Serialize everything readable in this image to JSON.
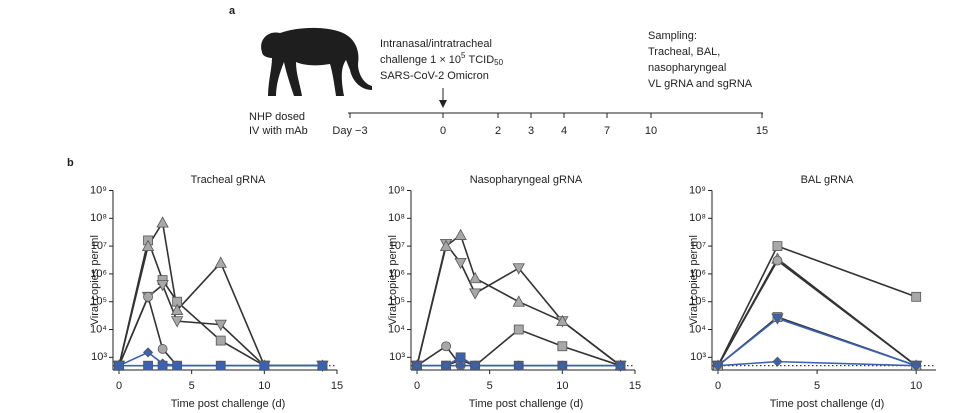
{
  "panel_a": {
    "label": "a",
    "challenge": {
      "line1": "Intranasal/intratracheal",
      "line2_text": "challenge 1 × 10",
      "line2_exp": "5",
      "line2_unit": "TCID",
      "line2_sub": "50",
      "line3": "SARS-CoV-2 Omicron"
    },
    "sampling": [
      "Sampling:",
      "Tracheal, BAL,",
      "nasopharyngeal",
      "VL gRNA and sgRNA"
    ],
    "dosing": [
      "NHP dosed",
      "IV with mAb"
    ],
    "timeline_ticks": [
      "Day −3",
      "0",
      "2",
      "3",
      "4",
      "7",
      "10",
      "15"
    ]
  },
  "panel_b_label": "b",
  "chart_data": [
    {
      "type": "line",
      "title": "Tracheal gRNA",
      "xlabel": "Time post challenge (d)",
      "ylabel": "Viral copies per ml",
      "x": [
        0,
        2,
        3,
        4,
        7,
        10,
        14
      ],
      "xlim": [
        0,
        15
      ],
      "xticks": [
        0,
        5,
        10,
        15
      ],
      "ylim": [
        350,
        1000000000
      ],
      "log_y": true,
      "threshold": 500,
      "yticks": [
        {
          "value": 1000,
          "label": "10³"
        },
        {
          "value": 10000,
          "label": "10⁴"
        },
        {
          "value": 100000,
          "label": "10⁵"
        },
        {
          "value": 1000000,
          "label": "10⁶"
        },
        {
          "value": 10000000,
          "label": "10⁷"
        },
        {
          "value": 100000000,
          "label": "10⁸"
        },
        {
          "value": 1000000000,
          "label": "10⁹"
        }
      ],
      "series": [
        {
          "color": "#a8a8a8",
          "line_color": "#333333",
          "marker": "square",
          "values": [
            500,
            16000000,
            600000,
            100000,
            4000,
            500,
            500
          ]
        },
        {
          "color": "#a8a8a8",
          "line_color": "#333333",
          "marker": "triangle",
          "values": [
            500,
            10000000,
            70000000,
            50000,
            2500000,
            500,
            500
          ]
        },
        {
          "color": "#a8a8a8",
          "line_color": "#333333",
          "marker": "triangle-down",
          "values": [
            500,
            150000,
            400000,
            20000,
            15000,
            500,
            500
          ]
        },
        {
          "color": "#a8a8a8",
          "line_color": "#333333",
          "marker": "circle",
          "values": [
            500,
            150000,
            2000,
            500,
            500,
            500,
            500
          ]
        },
        {
          "color": "#3a62b4",
          "line_color": "#3a62b4",
          "marker": "diamond",
          "values": [
            500,
            1500,
            600,
            500,
            500,
            500,
            500
          ]
        },
        {
          "color": "#3a62b4",
          "line_color": "#3a62b4",
          "marker": "square",
          "values": [
            500,
            500,
            500,
            500,
            500,
            500,
            500
          ]
        }
      ]
    },
    {
      "type": "line",
      "title": "Nasopharyngeal gRNA",
      "xlabel": "Time post challenge (d)",
      "ylabel": "Viral copies per ml",
      "x": [
        0,
        2,
        3,
        4,
        7,
        10,
        14
      ],
      "xlim": [
        0,
        15
      ],
      "xticks": [
        0,
        5,
        10,
        15
      ],
      "ylim": [
        350,
        1000000000
      ],
      "log_y": true,
      "threshold": 500,
      "yticks": [
        {
          "value": 1000,
          "label": "10³"
        },
        {
          "value": 10000,
          "label": "10⁴"
        },
        {
          "value": 100000,
          "label": "10⁵"
        },
        {
          "value": 1000000,
          "label": "10⁶"
        },
        {
          "value": 10000000,
          "label": "10⁷"
        },
        {
          "value": 100000000,
          "label": "10⁸"
        },
        {
          "value": 1000000000,
          "label": "10⁹"
        }
      ],
      "series": [
        {
          "color": "#a8a8a8",
          "line_color": "#333333",
          "marker": "triangle-down",
          "values": [
            500,
            12000000,
            2500000,
            200000,
            1600000,
            20000,
            500
          ]
        },
        {
          "color": "#a8a8a8",
          "line_color": "#333333",
          "marker": "triangle",
          "values": [
            500,
            10000000,
            25000000,
            700000,
            100000,
            20000,
            500
          ]
        },
        {
          "color": "#a8a8a8",
          "line_color": "#333333",
          "marker": "square",
          "values": [
            500,
            500,
            800,
            500,
            10000,
            2500,
            500
          ]
        },
        {
          "color": "#a8a8a8",
          "line_color": "#333333",
          "marker": "circle",
          "values": [
            500,
            2500,
            500,
            500,
            500,
            500,
            500
          ]
        },
        {
          "color": "#3a62b4",
          "line_color": "#3a62b4",
          "marker": "square",
          "values": [
            500,
            500,
            1000,
            500,
            500,
            500,
            500
          ]
        },
        {
          "color": "#3a62b4",
          "line_color": "#3a62b4",
          "marker": "diamond",
          "values": [
            500,
            500,
            500,
            500,
            500,
            500,
            500
          ]
        }
      ]
    },
    {
      "type": "line",
      "title": "BAL gRNA",
      "xlabel": "Time post challenge (d)",
      "ylabel": "Viral copies per ml",
      "x": [
        0,
        3,
        10
      ],
      "xlim": [
        0,
        11
      ],
      "xticks": [
        0,
        5,
        10
      ],
      "ylim": [
        350,
        1000000000
      ],
      "log_y": true,
      "threshold": 500,
      "yticks": [
        {
          "value": 1000,
          "label": "10³"
        },
        {
          "value": 10000,
          "label": "10⁴"
        },
        {
          "value": 100000,
          "label": "10⁵"
        },
        {
          "value": 1000000,
          "label": "10⁶"
        },
        {
          "value": 10000000,
          "label": "10⁷"
        },
        {
          "value": 100000000,
          "label": "10⁸"
        },
        {
          "value": 1000000000,
          "label": "10⁹"
        }
      ],
      "series": [
        {
          "color": "#a8a8a8",
          "line_color": "#333333",
          "marker": "square",
          "values": [
            500,
            10000000,
            150000
          ]
        },
        {
          "color": "#a8a8a8",
          "line_color": "#333333",
          "marker": "triangle",
          "values": [
            500,
            3500000,
            500
          ]
        },
        {
          "color": "#a8a8a8",
          "line_color": "#333333",
          "marker": "circle",
          "values": [
            500,
            3000000,
            500
          ]
        },
        {
          "color": "#a8a8a8",
          "line_color": "#333333",
          "marker": "square",
          "values": [
            500,
            28000,
            500
          ]
        },
        {
          "color": "#3a62b4",
          "line_color": "#3a62b4",
          "marker": "triangle-down",
          "values": [
            500,
            25000,
            500
          ]
        },
        {
          "color": "#3a62b4",
          "line_color": "#3a62b4",
          "marker": "diamond",
          "values": [
            500,
            700,
            500
          ]
        }
      ]
    }
  ]
}
